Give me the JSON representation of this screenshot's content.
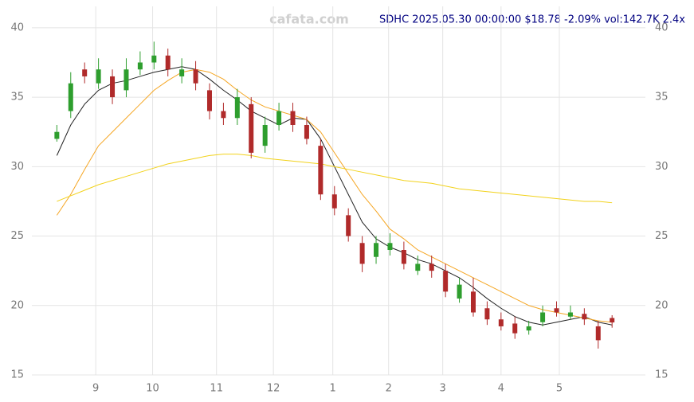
{
  "chart_data": {
    "type": "candlestick",
    "title": "SDHC 2025.05.30 00:00:00 $18.78 -2.09% vol:142.7K 2.4x",
    "watermark": "cafata.com",
    "x": [
      0,
      5,
      10,
      15,
      20,
      25,
      30,
      35,
      40,
      45,
      50,
      55,
      60,
      65,
      70,
      75,
      80,
      85,
      90,
      95,
      100,
      105,
      110,
      115,
      120,
      125,
      130,
      135,
      140,
      145,
      150,
      155,
      160,
      165,
      170,
      175,
      180,
      185,
      190,
      195,
      200
    ],
    "open": [
      32,
      34,
      37,
      36,
      36.5,
      35.5,
      37,
      37.5,
      38,
      36.5,
      37,
      35.5,
      34,
      33.5,
      34.5,
      31.5,
      33,
      34,
      33,
      31.5,
      28,
      26.5,
      24.5,
      23.5,
      24,
      24,
      22.5,
      23,
      22.5,
      20.5,
      21,
      19.8,
      19,
      18.7,
      18.2,
      18.8,
      19.8,
      19.2,
      19.4,
      18.5,
      19.1
    ],
    "high": [
      33,
      36.8,
      37.5,
      37.8,
      37,
      37.8,
      38.3,
      39,
      38.5,
      37.8,
      37.6,
      36,
      34.6,
      35.6,
      35,
      33.6,
      34.6,
      34.6,
      33.6,
      32,
      28.6,
      27,
      25,
      25,
      25.2,
      24.6,
      23.6,
      23.6,
      23,
      22,
      22,
      20.3,
      19.5,
      19.2,
      18.9,
      20,
      20.3,
      20,
      19.8,
      18.9,
      19.3
    ],
    "low": [
      31.8,
      33.5,
      36,
      35.6,
      34.5,
      35,
      36.6,
      37,
      36.5,
      36,
      35.5,
      33.4,
      33,
      33,
      30.6,
      31,
      32.6,
      32.5,
      31.6,
      27.6,
      26.5,
      24.6,
      22.4,
      23,
      23.6,
      22.6,
      22.2,
      22,
      20.6,
      20.2,
      19.2,
      18.6,
      18.2,
      17.6,
      17.9,
      18.5,
      19.2,
      19,
      18.6,
      16.9,
      18.4
    ],
    "close": [
      32.5,
      36,
      36.5,
      37,
      35,
      37,
      37.5,
      38,
      37,
      37,
      36,
      34,
      33.5,
      35,
      31,
      33,
      34,
      33,
      32,
      28,
      27,
      25,
      23,
      24.5,
      24.5,
      23,
      23,
      22.5,
      21,
      21.5,
      19.5,
      19,
      18.5,
      18,
      18.5,
      19.5,
      19.5,
      19.5,
      19,
      17.5,
      18.78
    ],
    "up_color": "#2e9e2e",
    "down_color": "#b02a2a",
    "overlays": [
      {
        "color": "#222222",
        "values": [
          30.8,
          33,
          34.5,
          35.5,
          36,
          36.2,
          36.5,
          36.8,
          37,
          37.2,
          37,
          36.3,
          35.5,
          34.8,
          34,
          33.5,
          33,
          33.5,
          33.4,
          32,
          30,
          28,
          26,
          24.8,
          24.2,
          23.8,
          23.3,
          23,
          22.5,
          22,
          21.3,
          20.5,
          19.8,
          19.2,
          18.8,
          18.6,
          18.8,
          19,
          19.2,
          18.8,
          18.6
        ]
      },
      {
        "color": "#f5a623",
        "values": [
          26.5,
          28,
          29.8,
          31.5,
          32.5,
          33.5,
          34.5,
          35.5,
          36.2,
          36.8,
          37,
          36.8,
          36.3,
          35.5,
          34.8,
          34.3,
          34,
          33.7,
          33.4,
          32.5,
          31,
          29.5,
          28,
          26.8,
          25.5,
          24.8,
          24,
          23.5,
          23,
          22.5,
          22,
          21.5,
          21,
          20.5,
          20,
          19.7,
          19.5,
          19.3,
          19.1,
          18.9,
          18.8
        ]
      },
      {
        "color": "#f2d21b",
        "values": [
          27.5,
          27.9,
          28.3,
          28.7,
          29,
          29.3,
          29.6,
          29.9,
          30.2,
          30.4,
          30.6,
          30.8,
          30.9,
          30.9,
          30.8,
          30.6,
          30.5,
          30.4,
          30.3,
          30.2,
          30,
          29.8,
          29.6,
          29.4,
          29.2,
          29,
          28.9,
          28.8,
          28.6,
          28.4,
          28.3,
          28.2,
          28.1,
          28,
          27.9,
          27.8,
          27.7,
          27.6,
          27.5,
          27.5,
          27.4
        ]
      }
    ],
    "xlim": [
      -9,
      212
    ],
    "xticks": [
      {
        "value": 14,
        "label": "9"
      },
      {
        "value": 34.5,
        "label": "10"
      },
      {
        "value": 57.5,
        "label": "11"
      },
      {
        "value": 78,
        "label": "12"
      },
      {
        "value": 99.4,
        "label": "1"
      },
      {
        "value": 119.5,
        "label": "2"
      },
      {
        "value": 139,
        "label": "3"
      },
      {
        "value": 160,
        "label": "4"
      },
      {
        "value": 181,
        "label": "5"
      }
    ],
    "ylim": [
      15,
      42
    ],
    "yticks": [
      15,
      20,
      25,
      30,
      35,
      40
    ],
    "grid": true
  }
}
